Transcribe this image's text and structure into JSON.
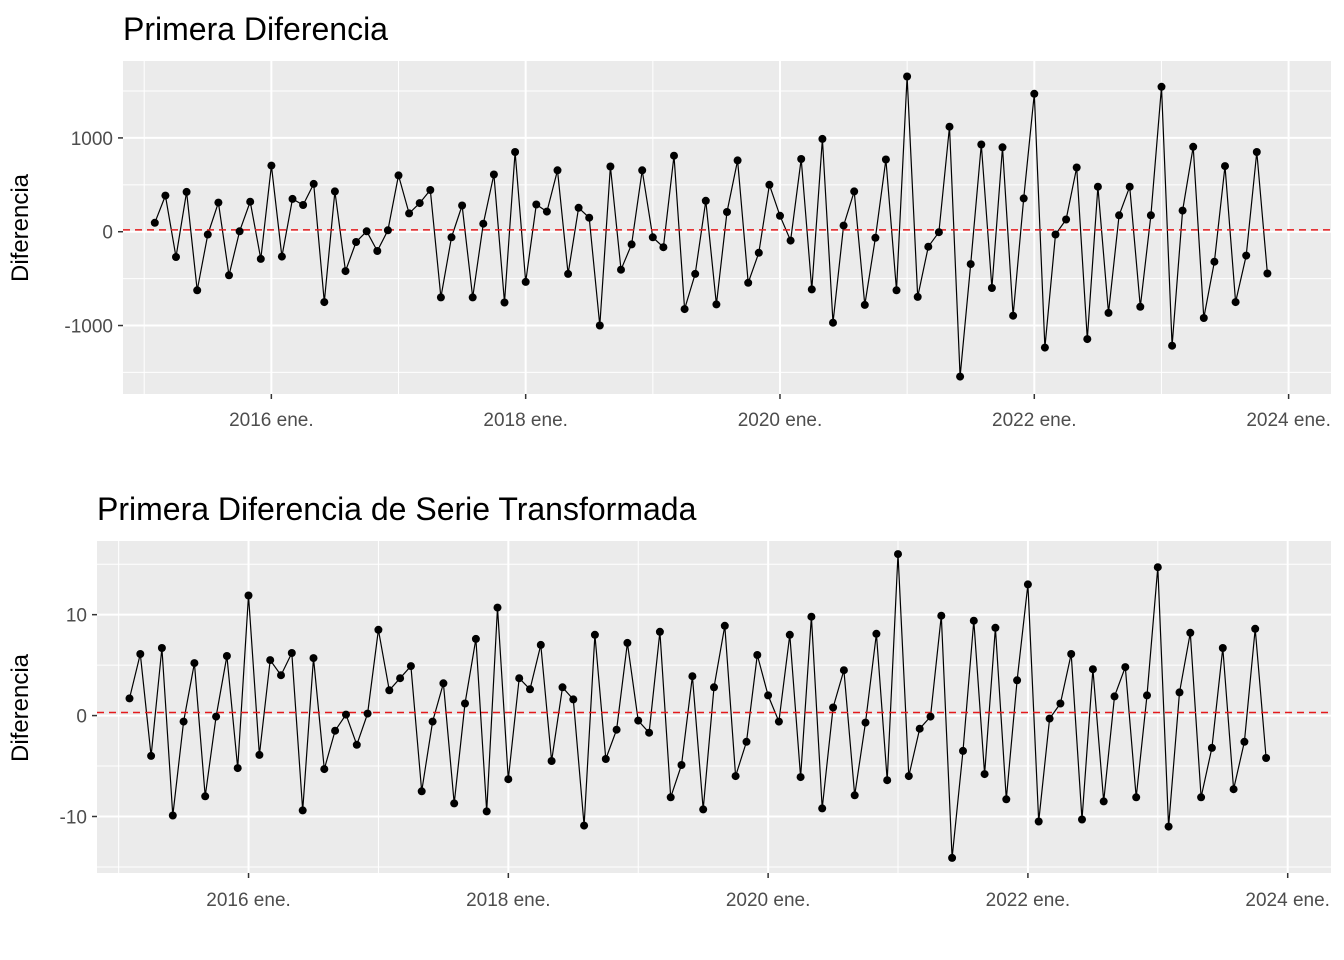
{
  "colors": {
    "panel_bg": "#ebebeb",
    "grid": "#ffffff",
    "line": "#000000",
    "point": "#000000",
    "ref_line": "#e41a1c"
  },
  "chart_data": [
    {
      "type": "line",
      "title": "Primera Diferencia",
      "xlabel": "",
      "ylabel": "Diferencia",
      "x_start": "2015-02",
      "x_ticks": [
        "2016 ene.",
        "2018 ene.",
        "2020 ene.",
        "2022 ene.",
        "2024 ene."
      ],
      "y_ticks": [
        "-1000",
        "0",
        "1000"
      ],
      "xlim": [
        "2014-11",
        "2024-05"
      ],
      "ylim": [
        -1730,
        1820
      ],
      "hline": {
        "y": 20,
        "style": "dashed"
      },
      "grid": true,
      "values": [
        95,
        385,
        -270,
        425,
        -625,
        -30,
        310,
        -465,
        5,
        320,
        -290,
        705,
        -265,
        350,
        285,
        510,
        -750,
        430,
        -420,
        -110,
        5,
        -205,
        15,
        600,
        195,
        305,
        445,
        -700,
        -60,
        280,
        -700,
        85,
        610,
        -755,
        850,
        -535,
        290,
        215,
        655,
        -450,
        255,
        150,
        -1000,
        695,
        -405,
        -135,
        655,
        -60,
        -165,
        810,
        -825,
        -450,
        330,
        -775,
        210,
        760,
        -545,
        -225,
        500,
        170,
        -95,
        775,
        -615,
        990,
        -970,
        65,
        430,
        -780,
        -65,
        770,
        -625,
        1655,
        -695,
        -160,
        -5,
        1120,
        -1545,
        -345,
        930,
        -600,
        900,
        -895,
        355,
        1470,
        -1235,
        -30,
        130,
        685,
        -1145,
        480,
        -865,
        175,
        480,
        -800,
        175,
        1545,
        -1215,
        225,
        905,
        -920,
        -320,
        700,
        -750,
        -255,
        850,
        -445
      ]
    },
    {
      "type": "line",
      "title": "Primera Diferencia de Serie Transformada",
      "xlabel": "",
      "ylabel": "Diferencia",
      "x_start": "2015-02",
      "x_ticks": [
        "2016 ene.",
        "2018 ene.",
        "2020 ene.",
        "2022 ene.",
        "2024 ene."
      ],
      "y_ticks": [
        "-10",
        "0",
        "10"
      ],
      "xlim": [
        "2014-11",
        "2024-05"
      ],
      "ylim": [
        -15.6,
        17.3
      ],
      "hline": {
        "y": 0.3,
        "style": "dashed"
      },
      "grid": true,
      "values": [
        1.7,
        6.1,
        -4.0,
        6.7,
        -9.9,
        -0.6,
        5.2,
        -8.0,
        -0.1,
        5.9,
        -5.2,
        11.9,
        -3.9,
        5.5,
        4.0,
        6.2,
        -9.4,
        5.7,
        -5.3,
        -1.5,
        0.1,
        -2.9,
        0.2,
        8.5,
        2.5,
        3.7,
        4.9,
        -7.5,
        -0.6,
        3.2,
        -8.7,
        1.2,
        7.6,
        -9.5,
        10.7,
        -6.3,
        3.7,
        2.6,
        7.0,
        -4.5,
        2.8,
        1.6,
        -10.9,
        8.0,
        -4.3,
        -1.4,
        7.2,
        -0.5,
        -1.7,
        8.3,
        -8.1,
        -4.9,
        3.9,
        -9.3,
        2.8,
        8.9,
        -6.0,
        -2.6,
        6.0,
        2.0,
        -0.6,
        8.0,
        -6.1,
        9.8,
        -9.2,
        0.8,
        4.5,
        -7.9,
        -0.7,
        8.1,
        -6.4,
        16.0,
        -6.0,
        -1.3,
        -0.1,
        9.9,
        -14.1,
        -3.5,
        9.4,
        -5.8,
        8.7,
        -8.3,
        3.5,
        13.0,
        -10.5,
        -0.3,
        1.2,
        6.1,
        -10.3,
        4.6,
        -8.5,
        1.9,
        4.8,
        -8.1,
        2.0,
        14.7,
        -11.0,
        2.3,
        8.2,
        -8.1,
        -3.2,
        6.7,
        -7.3,
        -2.6,
        8.6,
        -4.2
      ]
    }
  ]
}
